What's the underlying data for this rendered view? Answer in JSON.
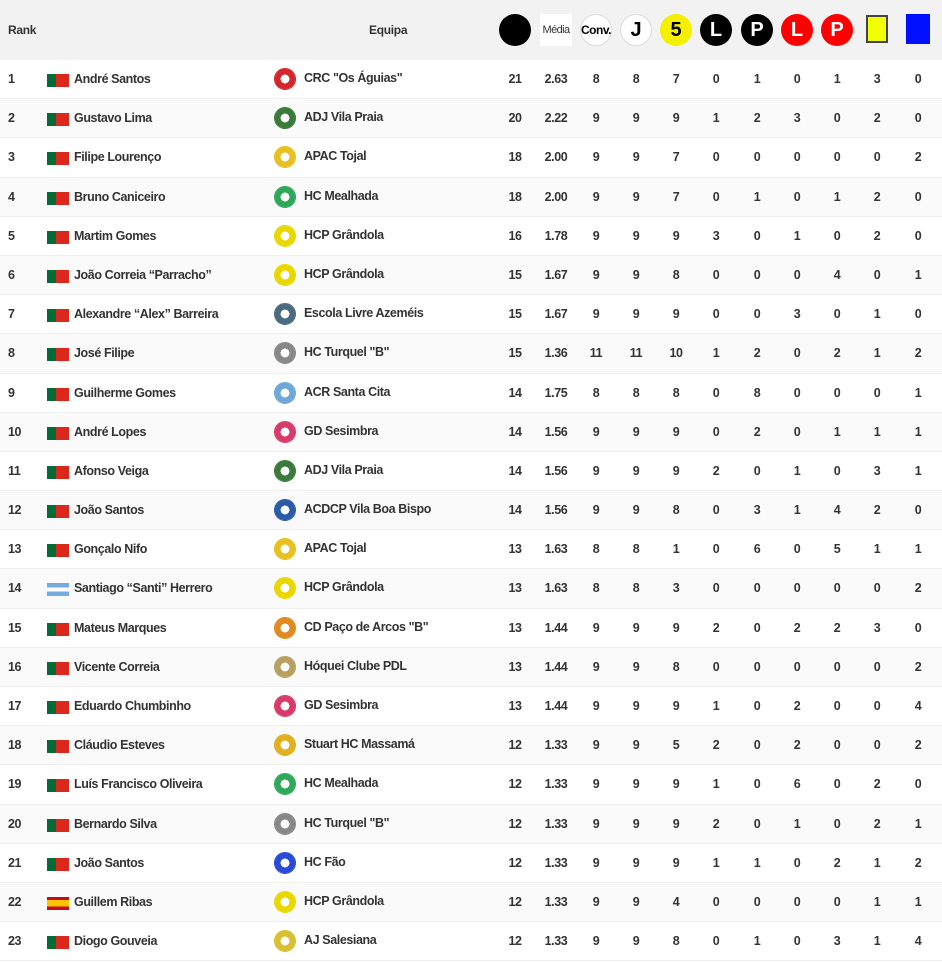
{
  "header": {
    "rank_label": "Rank",
    "team_label": "Equipa",
    "columns": [
      {
        "icon": "points-black-circle-icon",
        "label": "",
        "bg": "#000000",
        "fg": "#ffffff"
      },
      {
        "icon": "media-icon",
        "label": "Média",
        "bg": "#ffffff",
        "fg": "#333333"
      },
      {
        "icon": "convocations-icon",
        "label": "Conv.",
        "bg": "#ffffff",
        "fg": "#000000"
      },
      {
        "icon": "games-played-icon",
        "label": "J",
        "bg": "#ffffff",
        "fg": "#000000"
      },
      {
        "icon": "starting-five-icon",
        "label": "5",
        "bg": "#f5f000",
        "fg": "#000000"
      },
      {
        "icon": "free-hit-black-icon",
        "label": "L",
        "bg": "#000000",
        "fg": "#ffffff"
      },
      {
        "icon": "penalty-black-icon",
        "label": "P",
        "bg": "#000000",
        "fg": "#ffffff"
      },
      {
        "icon": "free-hit-red-icon",
        "label": "L",
        "bg": "#ff0000",
        "fg": "#ffffff"
      },
      {
        "icon": "penalty-red-icon",
        "label": "P",
        "bg": "#ff0000",
        "fg": "#ffffff"
      },
      {
        "icon": "yellow-card-icon",
        "label": "",
        "bg": "#f2ff00",
        "fg": "#000000"
      },
      {
        "icon": "blue-card-icon",
        "label": "",
        "bg": "#0010ff",
        "fg": "#ffffff"
      }
    ]
  },
  "rows": [
    {
      "rank": "1",
      "flag": "portugal",
      "name": "André Santos",
      "team": "CRC \"Os Águias\"",
      "logo": "#d7262b",
      "stats": [
        "21",
        "2.63",
        "8",
        "8",
        "7",
        "0",
        "1",
        "0",
        "1",
        "3",
        "0"
      ]
    },
    {
      "rank": "2",
      "flag": "portugal",
      "name": "Gustavo Lima",
      "team": "ADJ Vila Praia",
      "logo": "#3a7a3a",
      "stats": [
        "20",
        "2.22",
        "9",
        "9",
        "9",
        "1",
        "2",
        "3",
        "0",
        "2",
        "0"
      ]
    },
    {
      "rank": "3",
      "flag": "portugal",
      "name": "Filipe Lourenço",
      "team": "APAC Tojal",
      "logo": "#e8c020",
      "stats": [
        "18",
        "2.00",
        "9",
        "9",
        "7",
        "0",
        "0",
        "0",
        "0",
        "0",
        "2"
      ]
    },
    {
      "rank": "4",
      "flag": "portugal",
      "name": "Bruno Caniceiro",
      "team": "HC Mealhada",
      "logo": "#2fa85a",
      "stats": [
        "18",
        "2.00",
        "9",
        "9",
        "7",
        "0",
        "1",
        "0",
        "1",
        "2",
        "0"
      ]
    },
    {
      "rank": "5",
      "flag": "portugal",
      "name": "Martim Gomes",
      "team": "HCP Grândola",
      "logo": "#e8d800",
      "stats": [
        "16",
        "1.78",
        "9",
        "9",
        "9",
        "3",
        "0",
        "1",
        "0",
        "2",
        "0"
      ]
    },
    {
      "rank": "6",
      "flag": "portugal",
      "name": "João Correia “Parracho”",
      "team": "HCP Grândola",
      "logo": "#e8d800",
      "stats": [
        "15",
        "1.67",
        "9",
        "9",
        "8",
        "0",
        "0",
        "0",
        "4",
        "0",
        "1"
      ]
    },
    {
      "rank": "7",
      "flag": "portugal",
      "name": "Alexandre “Alex” Barreira",
      "team": "Escola Livre Azeméis",
      "logo": "#4a6a80",
      "stats": [
        "15",
        "1.67",
        "9",
        "9",
        "9",
        "0",
        "0",
        "3",
        "0",
        "1",
        "0"
      ]
    },
    {
      "rank": "8",
      "flag": "portugal",
      "name": "José Filipe",
      "team": "HC Turquel \"B\"",
      "logo": "#888888",
      "stats": [
        "15",
        "1.36",
        "11",
        "11",
        "10",
        "1",
        "2",
        "0",
        "2",
        "1",
        "2"
      ]
    },
    {
      "rank": "9",
      "flag": "portugal",
      "name": "Guilherme Gomes",
      "team": "ACR Santa Cita",
      "logo": "#6fa8d8",
      "stats": [
        "14",
        "1.75",
        "8",
        "8",
        "8",
        "0",
        "8",
        "0",
        "0",
        "0",
        "1"
      ]
    },
    {
      "rank": "10",
      "flag": "portugal",
      "name": "André Lopes",
      "team": "GD Sesimbra",
      "logo": "#d83a6a",
      "stats": [
        "14",
        "1.56",
        "9",
        "9",
        "9",
        "0",
        "2",
        "0",
        "1",
        "1",
        "1"
      ]
    },
    {
      "rank": "11",
      "flag": "portugal",
      "name": "Afonso Veiga",
      "team": "ADJ Vila Praia",
      "logo": "#3a7a3a",
      "stats": [
        "14",
        "1.56",
        "9",
        "9",
        "9",
        "2",
        "0",
        "1",
        "0",
        "3",
        "1"
      ]
    },
    {
      "rank": "12",
      "flag": "portugal",
      "name": "João Santos",
      "team": "ACDCP Vila Boa Bispo",
      "logo": "#2a5aa8",
      "stats": [
        "14",
        "1.56",
        "9",
        "9",
        "8",
        "0",
        "3",
        "1",
        "4",
        "2",
        "0"
      ]
    },
    {
      "rank": "13",
      "flag": "portugal",
      "name": "Gonçalo Nifo",
      "team": "APAC Tojal",
      "logo": "#e8c020",
      "stats": [
        "13",
        "1.63",
        "8",
        "8",
        "1",
        "0",
        "6",
        "0",
        "5",
        "1",
        "1"
      ]
    },
    {
      "rank": "14",
      "flag": "argentina",
      "name": "Santiago “Santi” Herrero",
      "team": "HCP Grândola",
      "logo": "#e8d800",
      "stats": [
        "13",
        "1.63",
        "8",
        "8",
        "3",
        "0",
        "0",
        "0",
        "0",
        "0",
        "2"
      ]
    },
    {
      "rank": "15",
      "flag": "portugal",
      "name": "Mateus Marques",
      "team": "CD Paço de Arcos \"B\"",
      "logo": "#e08a20",
      "stats": [
        "13",
        "1.44",
        "9",
        "9",
        "9",
        "2",
        "0",
        "2",
        "2",
        "3",
        "0"
      ]
    },
    {
      "rank": "16",
      "flag": "portugal",
      "name": "Vicente Correia",
      "team": "Hóquei Clube PDL",
      "logo": "#b8a060",
      "stats": [
        "13",
        "1.44",
        "9",
        "9",
        "8",
        "0",
        "0",
        "0",
        "0",
        "0",
        "2"
      ]
    },
    {
      "rank": "17",
      "flag": "portugal",
      "name": "Eduardo Chumbinho",
      "team": "GD Sesimbra",
      "logo": "#d83a6a",
      "stats": [
        "13",
        "1.44",
        "9",
        "9",
        "9",
        "1",
        "0",
        "2",
        "0",
        "0",
        "4"
      ]
    },
    {
      "rank": "18",
      "flag": "portugal",
      "name": "Cláudio Esteves",
      "team": "Stuart HC Massamá",
      "logo": "#e0b020",
      "stats": [
        "12",
        "1.33",
        "9",
        "9",
        "5",
        "2",
        "0",
        "2",
        "0",
        "0",
        "2"
      ]
    },
    {
      "rank": "19",
      "flag": "portugal",
      "name": "Luís Francisco Oliveira",
      "team": "HC Mealhada",
      "logo": "#2fa85a",
      "stats": [
        "12",
        "1.33",
        "9",
        "9",
        "9",
        "1",
        "0",
        "6",
        "0",
        "2",
        "0"
      ]
    },
    {
      "rank": "20",
      "flag": "portugal",
      "name": "Bernardo Silva",
      "team": "HC Turquel \"B\"",
      "logo": "#888888",
      "stats": [
        "12",
        "1.33",
        "9",
        "9",
        "9",
        "2",
        "0",
        "1",
        "0",
        "2",
        "1"
      ]
    },
    {
      "rank": "21",
      "flag": "portugal",
      "name": "João Santos",
      "team": "HC Fão",
      "logo": "#2a4ad8",
      "stats": [
        "12",
        "1.33",
        "9",
        "9",
        "9",
        "1",
        "1",
        "0",
        "2",
        "1",
        "2"
      ]
    },
    {
      "rank": "22",
      "flag": "spain",
      "name": "Guillem Ribas",
      "team": "HCP Grândola",
      "logo": "#e8d800",
      "stats": [
        "12",
        "1.33",
        "9",
        "9",
        "4",
        "0",
        "0",
        "0",
        "0",
        "1",
        "1"
      ]
    },
    {
      "rank": "23",
      "flag": "portugal",
      "name": "Diogo Gouveia",
      "team": "AJ Salesiana",
      "logo": "#d8c030",
      "stats": [
        "12",
        "1.33",
        "9",
        "9",
        "8",
        "0",
        "1",
        "0",
        "3",
        "1",
        "4"
      ]
    }
  ]
}
